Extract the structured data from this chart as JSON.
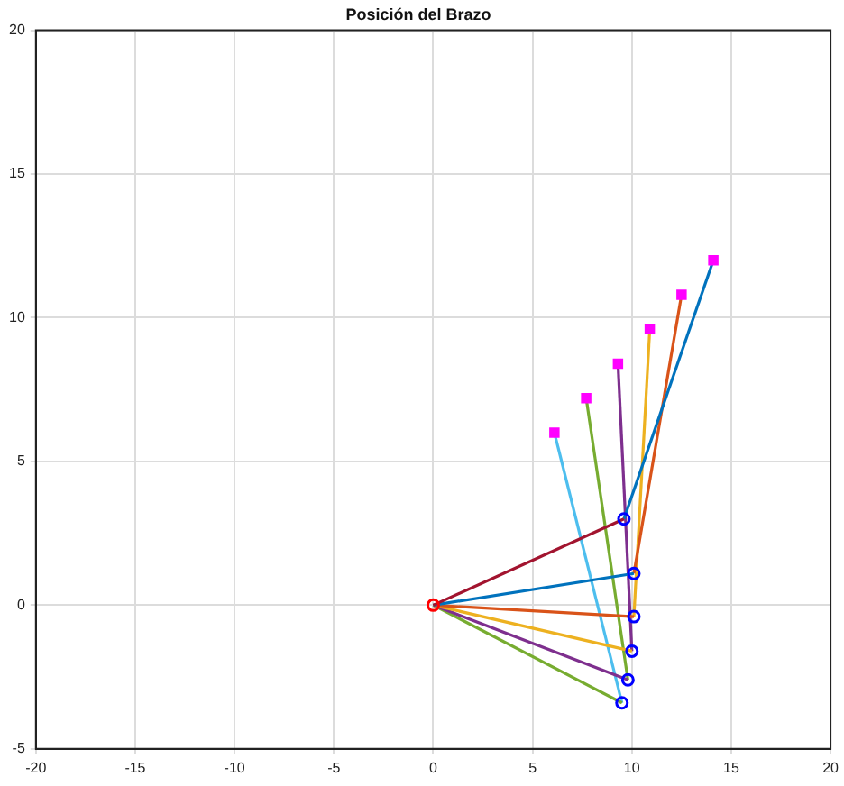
{
  "chart_data": {
    "type": "line",
    "title": "Posición del Brazo",
    "xlim": [
      -20,
      20
    ],
    "xticks": [
      -20,
      -15,
      -10,
      -5,
      0,
      5,
      10,
      15,
      20
    ],
    "ylim": [
      -5,
      20
    ],
    "yticks": [
      -5,
      0,
      5,
      10,
      15,
      20
    ],
    "grid": true,
    "marker": "none",
    "line_style": "solid",
    "series": [
      {
        "color": "#a2142f",
        "x": [
          0,
          9.6
        ],
        "values": [
          0,
          3.0
        ]
      },
      {
        "color": "#0072bd",
        "x": [
          9.6,
          14.1
        ],
        "values": [
          3.0,
          12.0
        ]
      },
      {
        "color": "#0072bd",
        "x": [
          0,
          10.1
        ],
        "values": [
          0,
          1.1
        ]
      },
      {
        "color": "#d95319",
        "x": [
          10.1,
          12.5
        ],
        "values": [
          1.1,
          10.8
        ]
      },
      {
        "color": "#d95319",
        "x": [
          0,
          10.1
        ],
        "values": [
          0,
          -0.4
        ]
      },
      {
        "color": "#edb120",
        "x": [
          10.1,
          10.9
        ],
        "values": [
          -0.4,
          9.6
        ]
      },
      {
        "color": "#edb120",
        "x": [
          0,
          10.0
        ],
        "values": [
          0,
          -1.6
        ]
      },
      {
        "color": "#7e2f8e",
        "x": [
          10.0,
          9.3
        ],
        "values": [
          -1.6,
          8.4
        ]
      },
      {
        "color": "#7e2f8e",
        "x": [
          0,
          9.8
        ],
        "values": [
          0,
          -2.6
        ]
      },
      {
        "color": "#77ac30",
        "x": [
          9.8,
          7.7
        ],
        "values": [
          -2.6,
          7.2
        ]
      },
      {
        "color": "#77ac30",
        "x": [
          0,
          9.5
        ],
        "values": [
          0,
          -3.4
        ]
      },
      {
        "color": "#4dbeee",
        "x": [
          9.5,
          6.1
        ],
        "values": [
          -3.4,
          6.0
        ]
      },
      {
        "type": "scatter",
        "color": "#ff0000",
        "marker": "circle",
        "x": [
          0
        ],
        "values": [
          0
        ]
      },
      {
        "type": "scatter",
        "color": "#0000ff",
        "marker": "circle",
        "x": [
          9.6,
          10.1,
          10.1,
          10.0,
          9.8,
          9.5
        ],
        "values": [
          3.0,
          1.1,
          -0.4,
          -1.6,
          -2.6,
          -3.4
        ]
      },
      {
        "type": "scatter",
        "color": "#ff00ff",
        "marker": "square",
        "x": [
          14.1,
          12.5,
          10.9,
          9.3,
          7.7,
          6.1
        ],
        "values": [
          12.0,
          10.8,
          9.6,
          8.4,
          7.2,
          6.0
        ]
      }
    ]
  }
}
